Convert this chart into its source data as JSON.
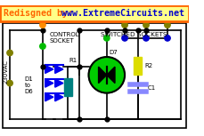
{
  "header_bg": "#ffff88",
  "header_border": "#ff6600",
  "header_text1": "Redisgned by: ",
  "header_text2": "www.ExtremeCircuits.net",
  "header_color1": "#ff6600",
  "header_color2": "#0000cc",
  "header_fontsize": 7.2,
  "circuit_bg": "#c8c8c8",
  "label_230vac": "230VAC",
  "label_control": "CONTROL\nSOCKET",
  "label_switched": "SWITCHED SOCKETS",
  "label_d1d6": "D1\nto\nD6",
  "label_r1": "R1",
  "label_d7": "D7",
  "label_r2": "R2",
  "label_c1": "C1",
  "white_bg": "#ffffff",
  "lw": 1.2
}
